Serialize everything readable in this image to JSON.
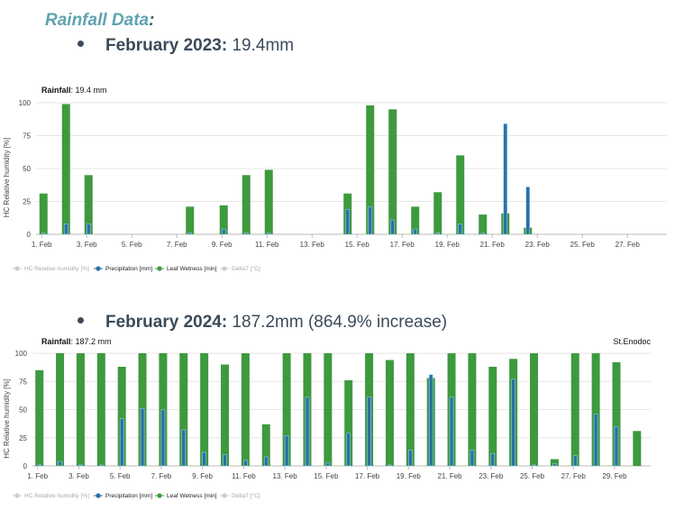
{
  "heading": "Rainfall Data",
  "heading_suffix": ":",
  "bullets": [
    {
      "label": "February 2023:",
      "value": "19.4mm"
    },
    {
      "label": "February 2024:",
      "value": "187.2mm (864.9% increase)"
    }
  ],
  "colors": {
    "wetness": "#3d9a3d",
    "precip": "#2c6fa3",
    "grid": "#e6e6e6"
  },
  "chart_data": [
    {
      "type": "bar",
      "title_label": "Rainfall",
      "title_value": ": 19.4 mm",
      "site": "",
      "ylabel": "HC Relative humidity [%]",
      "ylim": [
        0,
        100
      ],
      "yticks": [
        0,
        25,
        50,
        75,
        100
      ],
      "xticks": [
        "1. Feb",
        "3. Feb",
        "5. Feb",
        "7. Feb",
        "9. Feb",
        "11. Feb",
        "13. Feb",
        "15. Feb",
        "17. Feb",
        "19. Feb",
        "21. Feb",
        "23. Feb",
        "25. Feb",
        "27. Feb"
      ],
      "grid": true,
      "legend": [
        "HC Relative humidity [%]",
        "Precipitation [mm]",
        "Leaf Wetness [min]",
        "DeltaT [°C]"
      ],
      "days": 28,
      "series": [
        {
          "name": "Leaf Wetness [min]",
          "values": [
            31,
            null,
            99,
            null,
            45,
            null,
            null,
            null,
            null,
            null,
            null,
            null,
            null,
            21,
            null,
            null,
            22,
            null,
            45,
            null,
            49,
            null,
            null,
            null,
            null,
            null,
            null,
            31,
            null,
            98,
            null,
            95,
            null,
            21,
            null,
            32,
            null,
            60,
            null,
            15,
            null,
            16,
            null,
            5,
            null,
            null,
            null,
            null,
            null,
            null,
            null,
            null,
            null,
            null,
            null,
            null
          ]
        },
        {
          "name": "Precipitation [mm]",
          "values": [
            null,
            0,
            null,
            8,
            null,
            8,
            null,
            null,
            null,
            null,
            null,
            null,
            null,
            null,
            1,
            null,
            null,
            4,
            null,
            1,
            null,
            0,
            null,
            null,
            null,
            null,
            null,
            null,
            19,
            null,
            21,
            null,
            11,
            null,
            4,
            null,
            1,
            null,
            8,
            null,
            0,
            null,
            84,
            null,
            36,
            null,
            null,
            null,
            null,
            null,
            null,
            null,
            null,
            null,
            null,
            null
          ]
        }
      ]
    },
    {
      "type": "bar",
      "title_label": "Rainfall",
      "title_value": ": 187.2 mm",
      "site": "St.Enodoc",
      "ylabel": "HC Relative humidity [%]",
      "ylim": [
        0,
        100
      ],
      "yticks": [
        0,
        25,
        50,
        75,
        100
      ],
      "xticks": [
        "1. Feb",
        "3. Feb",
        "5. Feb",
        "7. Feb",
        "9. Feb",
        "11. Feb",
        "13. Feb",
        "15. Feb",
        "17. Feb",
        "19. Feb",
        "21. Feb",
        "23. Feb",
        "25. Feb",
        "27. Feb",
        "29. Feb"
      ],
      "grid": true,
      "legend": [
        "HC Relative humidity [%]",
        "Precipitation [mm]",
        "Leaf Wetness [min]",
        "DeltaT [°C]"
      ],
      "days": 30,
      "series": [
        {
          "name": "Leaf Wetness [min]",
          "values": [
            85,
            null,
            100,
            null,
            100,
            null,
            100,
            null,
            88,
            null,
            100,
            null,
            100,
            null,
            100,
            null,
            100,
            null,
            90,
            null,
            100,
            null,
            37,
            null,
            100,
            null,
            100,
            null,
            100,
            null,
            76,
            null,
            100,
            null,
            94,
            null,
            100,
            null,
            78,
            null,
            100,
            null,
            100,
            null,
            88,
            null,
            95,
            null,
            100,
            null,
            6,
            null,
            100,
            null,
            100,
            null,
            92,
            null,
            31,
            null
          ]
        },
        {
          "name": "Precipitation [mm]",
          "values": [
            null,
            1,
            null,
            4,
            null,
            0,
            null,
            0,
            null,
            42,
            null,
            51,
            null,
            50,
            null,
            32,
            null,
            12,
            null,
            10,
            null,
            5,
            null,
            8,
            null,
            27,
            null,
            61,
            null,
            3,
            null,
            29,
            null,
            61,
            null,
            0,
            null,
            14,
            null,
            81,
            null,
            61,
            null,
            14,
            null,
            11,
            null,
            77,
            null,
            0,
            null,
            2,
            null,
            9,
            null,
            46,
            null,
            35
          ]
        }
      ]
    }
  ]
}
